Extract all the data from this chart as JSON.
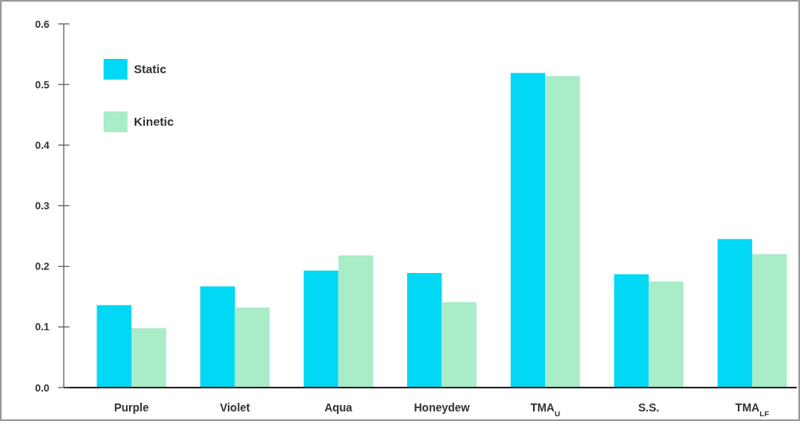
{
  "chart_data": {
    "type": "bar",
    "categories": [
      "Purple",
      "Violet",
      "Aqua",
      "Honeydew",
      "TMA$_{U}$",
      "S.S.",
      "TMA$_{LF}$"
    ],
    "series": [
      {
        "name": "Static",
        "color": "#00d8f5",
        "values": [
          0.136,
          0.167,
          0.193,
          0.189,
          0.519,
          0.187,
          0.245
        ]
      },
      {
        "name": "Kinetic",
        "color": "#a8ecc8",
        "values": [
          0.098,
          0.132,
          0.218,
          0.141,
          0.514,
          0.175,
          0.22
        ]
      }
    ],
    "ylim": [
      0,
      0.6
    ],
    "yticks": [
      {
        "value": 0,
        "label": "0.0"
      },
      0.1,
      0.2,
      0.3,
      0.4,
      0.5,
      0.6
    ],
    "legend": "top left"
  }
}
